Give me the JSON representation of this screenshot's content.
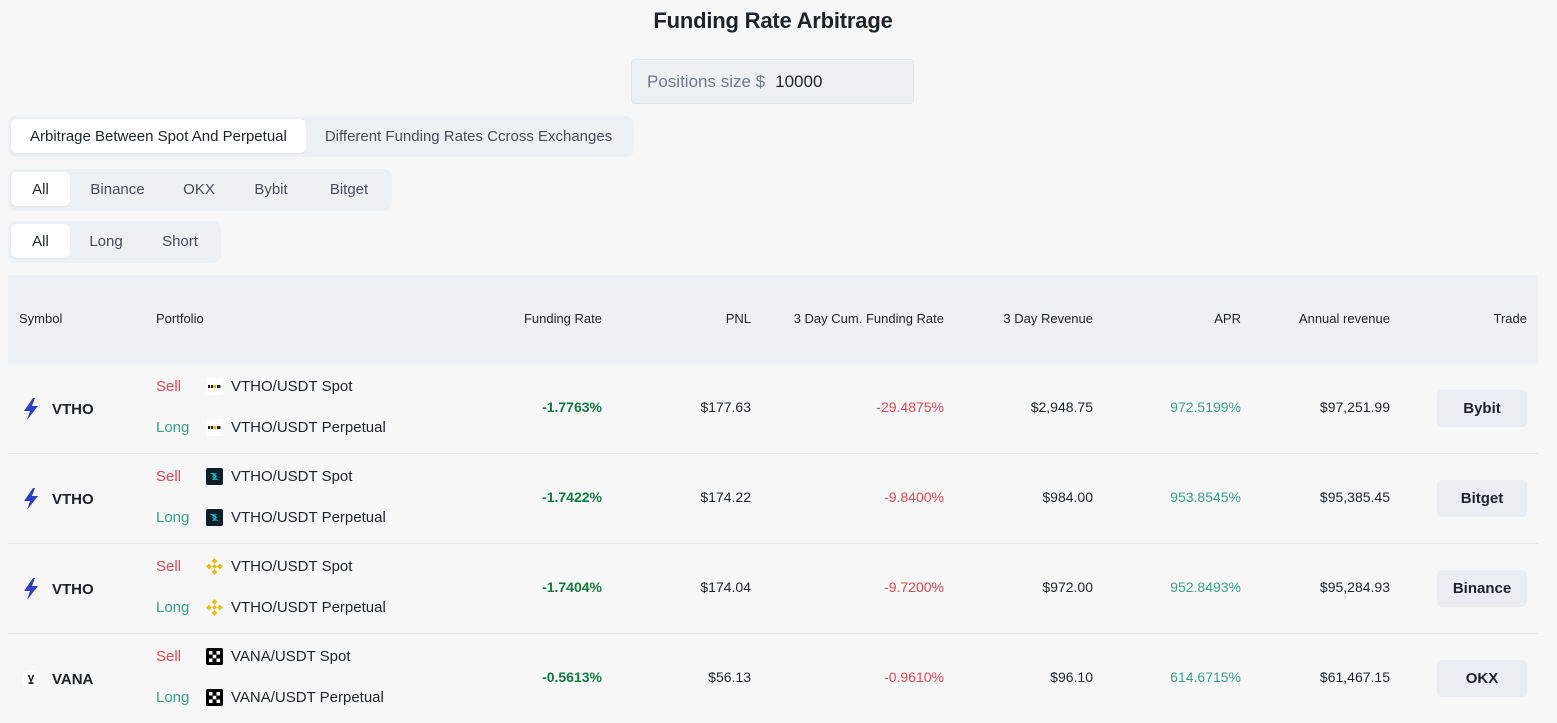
{
  "title": "Funding Rate Arbitrage",
  "position": {
    "label": "Positions size $",
    "value": "10000"
  },
  "mode_tabs": [
    {
      "label": "Arbitrage Between Spot And Perpetual",
      "active": true
    },
    {
      "label": "Different Funding Rates Ccross Exchanges",
      "active": false
    }
  ],
  "exchange_tabs": [
    {
      "label": "All",
      "active": true
    },
    {
      "label": "Binance",
      "active": false
    },
    {
      "label": "OKX",
      "active": false
    },
    {
      "label": "Bybit",
      "active": false
    },
    {
      "label": "Bitget",
      "active": false
    }
  ],
  "direction_tabs": [
    {
      "label": "All",
      "active": true
    },
    {
      "label": "Long",
      "active": false
    },
    {
      "label": "Short",
      "active": false
    }
  ],
  "columns": [
    "Symbol",
    "Portfolio",
    "Funding Rate",
    "PNL",
    "3 Day Cum. Funding Rate",
    "3 Day Revenue",
    "APR",
    "Annual revenue",
    "Trade"
  ],
  "rows": [
    {
      "symbol": "VTHO",
      "symbol_icon": "vtho-bolt-icon",
      "legs": [
        {
          "side": "Sell",
          "exchange_icon": "bybit-icon",
          "pair": "VTHO/USDT Spot"
        },
        {
          "side": "Long",
          "exchange_icon": "bybit-icon",
          "pair": "VTHO/USDT Perpetual"
        }
      ],
      "funding_rate": "-1.7763%",
      "pnl": "$177.63",
      "cum_funding_rate": "-29.4875%",
      "revenue_3d": "$2,948.75",
      "apr": "972.5199%",
      "annual_revenue": "$97,251.99",
      "trade": "Bybit"
    },
    {
      "symbol": "VTHO",
      "symbol_icon": "vtho-bolt-icon",
      "legs": [
        {
          "side": "Sell",
          "exchange_icon": "bitget-icon",
          "pair": "VTHO/USDT Spot"
        },
        {
          "side": "Long",
          "exchange_icon": "bitget-icon",
          "pair": "VTHO/USDT Perpetual"
        }
      ],
      "funding_rate": "-1.7422%",
      "pnl": "$174.22",
      "cum_funding_rate": "-9.8400%",
      "revenue_3d": "$984.00",
      "apr": "953.8545%",
      "annual_revenue": "$95,385.45",
      "trade": "Bitget"
    },
    {
      "symbol": "VTHO",
      "symbol_icon": "vtho-bolt-icon",
      "legs": [
        {
          "side": "Sell",
          "exchange_icon": "binance-icon",
          "pair": "VTHO/USDT Spot"
        },
        {
          "side": "Long",
          "exchange_icon": "binance-icon",
          "pair": "VTHO/USDT Perpetual"
        }
      ],
      "funding_rate": "-1.7404%",
      "pnl": "$174.04",
      "cum_funding_rate": "-9.7200%",
      "revenue_3d": "$972.00",
      "apr": "952.8493%",
      "annual_revenue": "$95,284.93",
      "trade": "Binance"
    },
    {
      "symbol": "VANA",
      "symbol_icon": "vana-icon",
      "legs": [
        {
          "side": "Sell",
          "exchange_icon": "okx-icon",
          "pair": "VANA/USDT Spot"
        },
        {
          "side": "Long",
          "exchange_icon": "okx-icon",
          "pair": "VANA/USDT Perpetual"
        }
      ],
      "funding_rate": "-0.5613%",
      "pnl": "$56.13",
      "cum_funding_rate": "-0.9610%",
      "revenue_3d": "$96.10",
      "apr": "614.6715%",
      "annual_revenue": "$61,467.15",
      "trade": "OKX"
    }
  ],
  "colors": {
    "sell": "#e0464f",
    "long": "#36a389",
    "funding": "#0f7b3e",
    "bolt": "#2f3fc4",
    "binance": "#f0b90b",
    "bitget": "#00c3d7"
  }
}
